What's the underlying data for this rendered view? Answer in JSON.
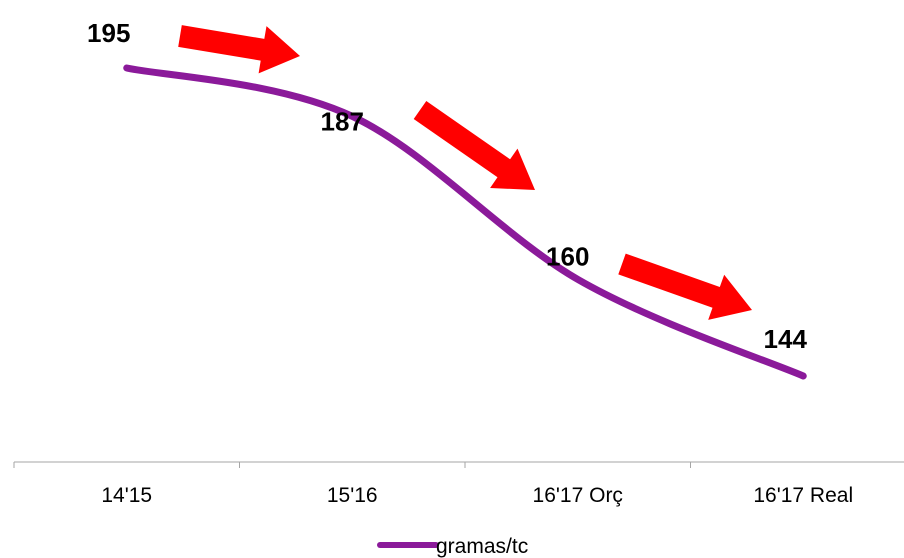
{
  "chart_data": {
    "type": "line",
    "categories": [
      "14'15",
      "15'16",
      "16'17 Orç",
      "16'17 Real"
    ],
    "series": [
      {
        "name": "gramas/tc",
        "values": [
          195,
          187,
          160,
          144
        ],
        "color": "#8B1A9A"
      }
    ],
    "data_labels": [
      "195",
      "187",
      "160",
      "144"
    ],
    "smooth": true,
    "arrow_color": "#FF0000",
    "arrows": 3,
    "legend": {
      "position": "bottom",
      "label": "gramas/tc"
    },
    "grid": false,
    "ylim": [
      120,
      200
    ],
    "title": "",
    "xlabel": "",
    "ylabel": ""
  }
}
